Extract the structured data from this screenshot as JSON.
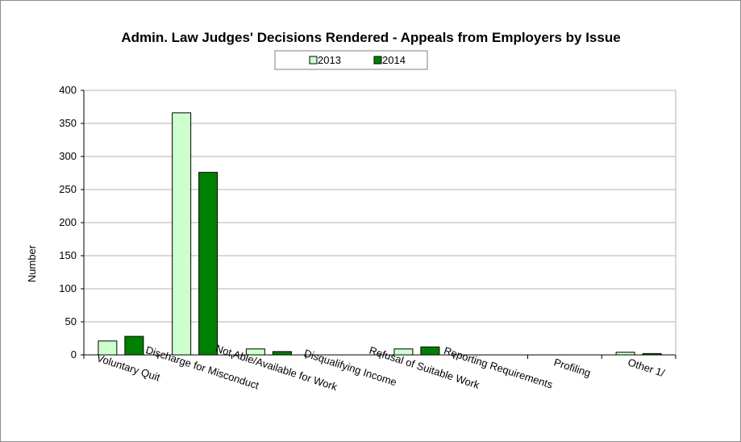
{
  "chart_data": {
    "type": "bar",
    "title": "Admin. Law Judges' Decisions Rendered - Appeals from Employers by Issue",
    "xlabel": "",
    "ylabel": "Number",
    "ylim": [
      0,
      400
    ],
    "yticks": [
      0,
      50,
      100,
      150,
      200,
      250,
      300,
      350,
      400
    ],
    "grid": true,
    "legend_position": "top-center",
    "categories": [
      "Voluntary Quit",
      "Discharge for Misconduct",
      "Not Able/Available for Work",
      "Disqualifying Income",
      "Refusal of Suitable Work",
      "Reporting Requirements",
      "Profiling",
      "Other 1/"
    ],
    "series": [
      {
        "name": "2013",
        "color": "#ccffcc",
        "values": [
          21,
          366,
          9,
          0,
          9,
          0,
          0,
          4
        ]
      },
      {
        "name": "2014",
        "color": "#008000",
        "values": [
          28,
          276,
          5,
          0,
          12,
          0,
          0,
          2
        ]
      }
    ]
  }
}
